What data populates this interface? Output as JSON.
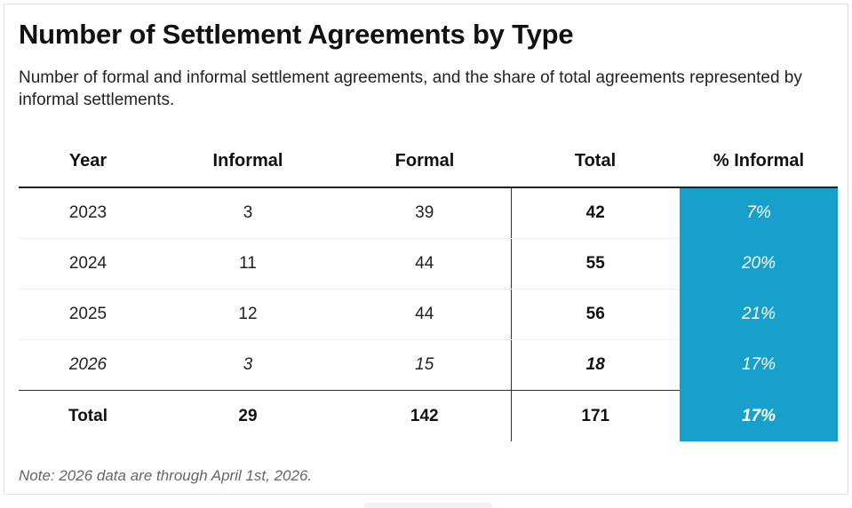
{
  "chart_data": {
    "type": "table",
    "title": "Number of Settlement Agreements by Type",
    "subtitle": "Number of formal and informal settlement agreements, and the share of total agreements represented by informal settlements.",
    "columns": [
      "Year",
      "Informal",
      "Formal",
      "Total",
      "% Informal"
    ],
    "rows": [
      {
        "year": "2023",
        "informal": "3",
        "formal": "39",
        "total": "42",
        "pct_informal": "7%"
      },
      {
        "year": "2024",
        "informal": "11",
        "formal": "44",
        "total": "55",
        "pct_informal": "20%"
      },
      {
        "year": "2025",
        "informal": "12",
        "formal": "44",
        "total": "56",
        "pct_informal": "21%"
      },
      {
        "year": "2026",
        "informal": "3",
        "formal": "15",
        "total": "18",
        "pct_informal": "17%"
      }
    ],
    "summary": {
      "year": "Total",
      "informal": "29",
      "formal": "142",
      "total": "171",
      "pct_informal": "17%"
    },
    "note": "Note: 2026 data are through April 1st, 2026.",
    "highlight_color": "#17a0cb"
  }
}
